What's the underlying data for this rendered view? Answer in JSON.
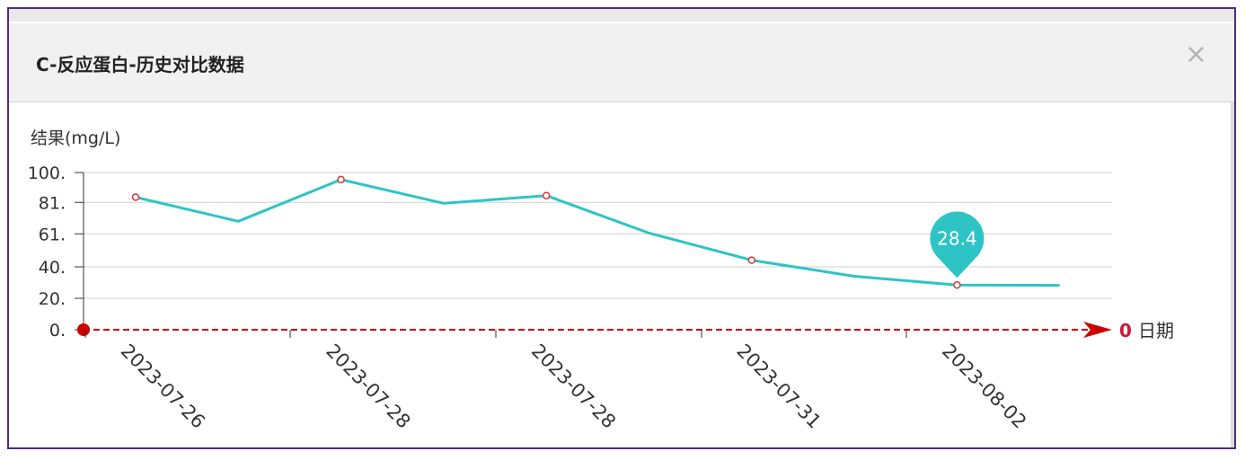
{
  "dialog": {
    "title": "C-反应蛋白-历史对比数据",
    "close_glyph": "×"
  },
  "chart_data": {
    "type": "line",
    "ylabel": "结果(mg/L)",
    "xlabel": "日期",
    "x_origin_label": "0",
    "y_ticks": [
      "0.",
      "20.",
      "40.",
      "61.",
      "81.",
      "100."
    ],
    "y_tick_values": [
      0,
      20,
      40,
      61,
      81,
      100
    ],
    "ylim": [
      0,
      100
    ],
    "x_tick_labels": [
      "2023-07-26",
      "2023-07-28",
      "2023-07-28",
      "2023-07-31",
      "2023-08-02"
    ],
    "series": [
      {
        "values": [
          84.3,
          69,
          95.5,
          80.4,
          85.3,
          61.5,
          44.2,
          34,
          28.4,
          28.2
        ],
        "markers": [
          true,
          false,
          true,
          false,
          true,
          false,
          true,
          false,
          true,
          false
        ],
        "color": "#2ec4c6"
      }
    ],
    "highlight": {
      "index": 8,
      "label": "28.4",
      "color": "#2ec4c6"
    },
    "axis_color": "#cc0000",
    "grid": true
  }
}
